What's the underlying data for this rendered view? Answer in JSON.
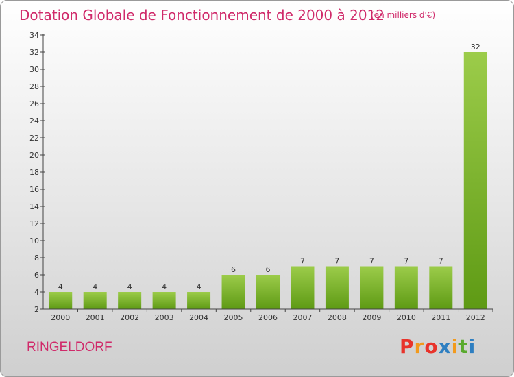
{
  "header": {
    "title": "Dotation Globale de Fonctionnement de 2000 à 2012",
    "unit": "(en milliers d'€)"
  },
  "footer": {
    "commune": "RINGELDORF",
    "brand_letters": [
      "P",
      "r",
      "o",
      "x",
      "i",
      "t",
      "i"
    ],
    "brand_colors": [
      "#e8332b",
      "#f29a1d",
      "#e8332b",
      "#2e7fc1",
      "#f29a1d",
      "#5aaa2e",
      "#2e7fc1"
    ]
  },
  "chart_data": {
    "type": "bar",
    "categories": [
      "2000",
      "2001",
      "2002",
      "2003",
      "2004",
      "2005",
      "2006",
      "2007",
      "2008",
      "2009",
      "2010",
      "2011",
      "2012"
    ],
    "values": [
      4,
      4,
      4,
      4,
      4,
      6,
      6,
      7,
      7,
      7,
      7,
      7,
      32
    ],
    "ylim": [
      2,
      34
    ],
    "yticks": [
      2,
      4,
      6,
      8,
      10,
      12,
      14,
      16,
      18,
      20,
      22,
      24,
      26,
      28,
      30,
      32,
      34
    ],
    "grid": false,
    "bar_colors": {
      "top": "#9ccc4a",
      "bottom": "#5e9a14"
    }
  }
}
